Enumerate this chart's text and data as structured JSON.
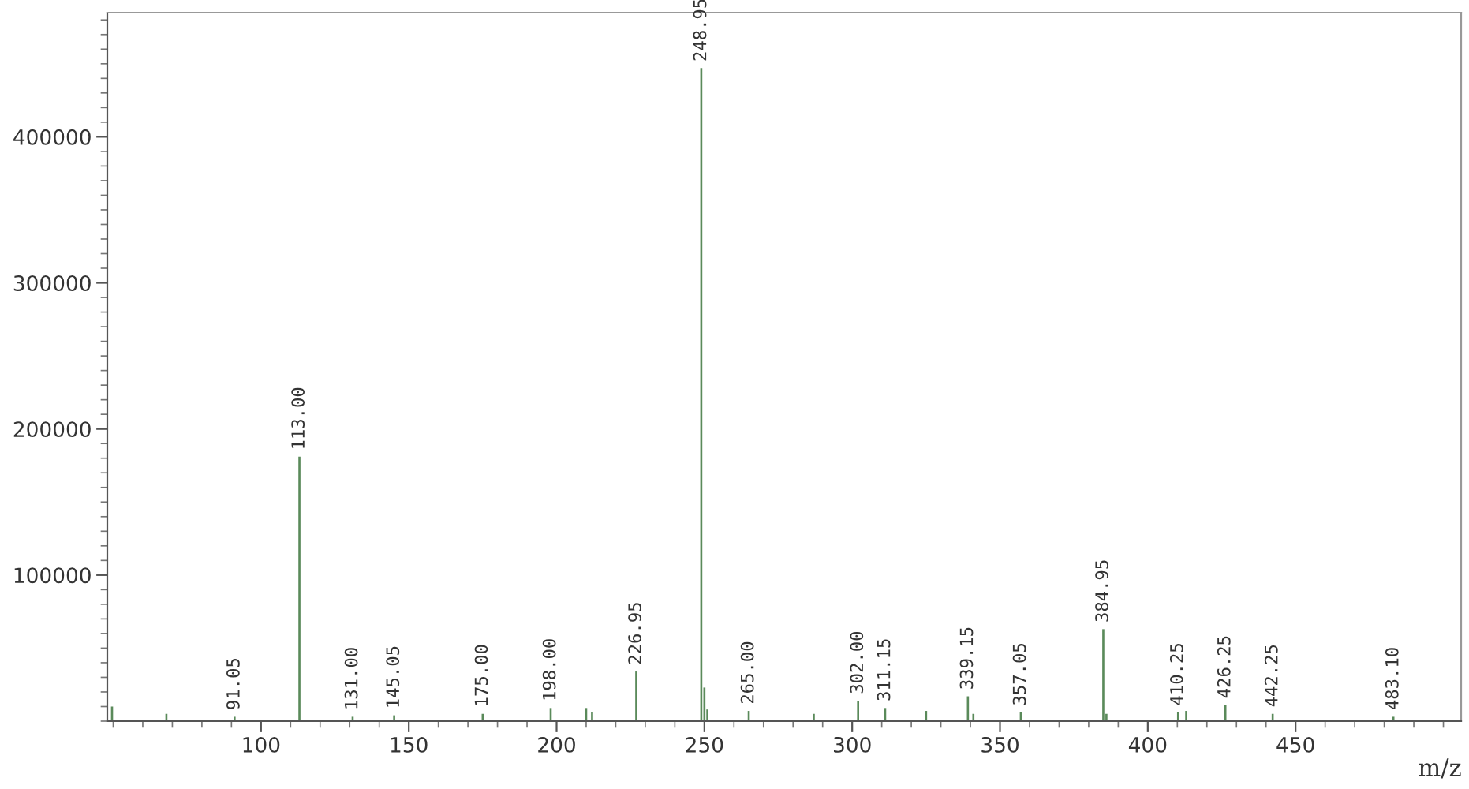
{
  "chart_data": {
    "type": "bar",
    "xlabel": "m/z",
    "x": [
      49.6,
      68,
      91.05,
      113.0,
      131.0,
      145.05,
      175.0,
      198.0,
      210,
      212,
      226.95,
      248.95,
      250,
      251,
      265.0,
      287,
      302.0,
      311.15,
      325,
      339.15,
      341,
      357.05,
      384.95,
      386,
      410.25,
      413,
      426.25,
      442.25,
      483.1
    ],
    "values": [
      10000,
      5000,
      3000,
      181000,
      3000,
      4000,
      5000,
      9000,
      9000,
      6000,
      34000,
      447000,
      23000,
      8000,
      7000,
      5000,
      14000,
      9000,
      7000,
      17000,
      5000,
      6000,
      63000,
      5000,
      6000,
      7000,
      11000,
      5000,
      3000
    ],
    "color": "#5a8a5a",
    "xlim": [
      48,
      506
    ],
    "ylim": [
      0,
      485000
    ],
    "xticks": [
      100,
      150,
      200,
      250,
      300,
      350,
      400,
      450
    ],
    "yticks": [
      100000,
      200000,
      300000,
      400000
    ],
    "grid": false,
    "legend": false,
    "annotations": [
      {
        "text": "91.05",
        "x": 91.05,
        "y": 3000
      },
      {
        "text": "113.00",
        "x": 113.0,
        "y": 181000
      },
      {
        "text": "131.00",
        "x": 131.0,
        "y": 3000
      },
      {
        "text": "145.05",
        "x": 145.05,
        "y": 4000
      },
      {
        "text": "175.00",
        "x": 175.0,
        "y": 5000
      },
      {
        "text": "198.00",
        "x": 198.0,
        "y": 9000
      },
      {
        "text": "226.95",
        "x": 226.95,
        "y": 34000
      },
      {
        "text": "248.95",
        "x": 248.95,
        "y": 447000
      },
      {
        "text": "265.00",
        "x": 265.0,
        "y": 7000
      },
      {
        "text": "302.00",
        "x": 302.0,
        "y": 14000
      },
      {
        "text": "311.15",
        "x": 311.15,
        "y": 9000
      },
      {
        "text": "339.15",
        "x": 339.15,
        "y": 17000
      },
      {
        "text": "357.05",
        "x": 357.05,
        "y": 6000
      },
      {
        "text": "384.95",
        "x": 384.95,
        "y": 63000
      },
      {
        "text": "410.25",
        "x": 410.25,
        "y": 6000
      },
      {
        "text": "426.25",
        "x": 426.25,
        "y": 11000
      },
      {
        "text": "442.25",
        "x": 442.25,
        "y": 5000
      },
      {
        "text": "483.10",
        "x": 483.1,
        "y": 3000
      }
    ]
  }
}
